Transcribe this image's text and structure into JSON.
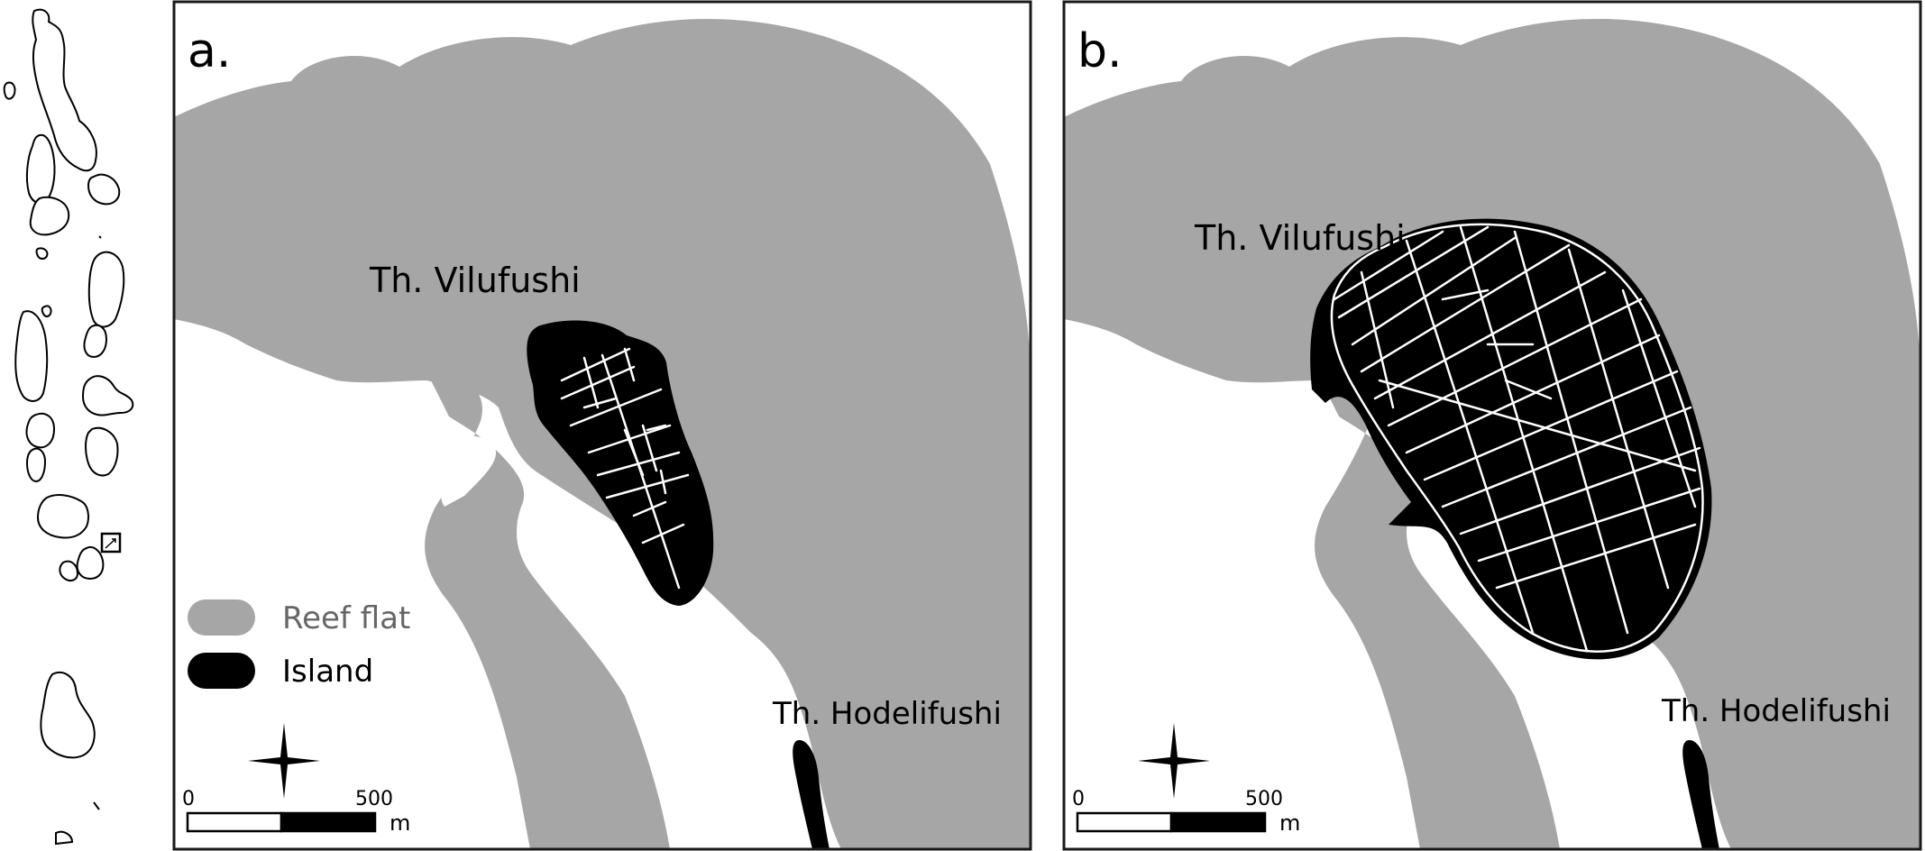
{
  "colors": {
    "reef": "#a6a6a6",
    "island": "#000000",
    "sea": "#ffffff",
    "frame": "#1a1a1a",
    "road": "#ffffff",
    "legend_reef_text": "#666666",
    "label_text": "#000000"
  },
  "panels": [
    {
      "id": "a",
      "letter": "a.",
      "island_label": "Th. Vilufushi",
      "neighbor_label": "Th. Hodelifushi",
      "scale": {
        "start": "0",
        "end": "500",
        "unit": "m"
      }
    },
    {
      "id": "b",
      "letter": "b.",
      "island_label": "Th. Vilufushi",
      "neighbor_label": "Th. Hodelifushi",
      "scale": {
        "start": "0",
        "end": "500",
        "unit": "m"
      }
    }
  ],
  "legend": {
    "items": [
      {
        "label": "Reef flat",
        "color": "#a6a6a6"
      },
      {
        "label": "Island",
        "color": "#000000"
      }
    ]
  },
  "icons": {
    "north_arrow": "compass-rose-icon",
    "locator_box": "locator-box-icon"
  }
}
